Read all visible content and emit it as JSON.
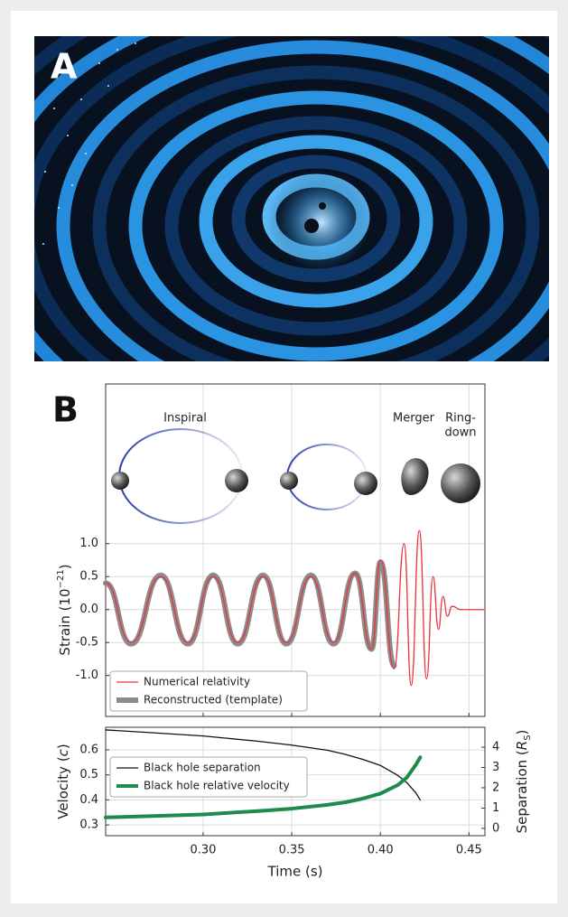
{
  "panels": {
    "a_label": "A",
    "b_label": "B"
  },
  "illustration": {
    "inspiral": "Inspiral",
    "merger": "Merger",
    "ringdown": [
      "Ring-",
      "down"
    ]
  },
  "chart_data": [
    {
      "type": "line",
      "smooth": true,
      "grid": true,
      "xtick_labels": false,
      "ylabel": [
        "Strain (10",
        "−21",
        ")"
      ],
      "xlim": [
        0.245,
        0.459
      ],
      "xticks": [
        0.3,
        0.35,
        0.4,
        0.45
      ],
      "ylim": [
        -1.62,
        3.42
      ],
      "yticks": [
        {
          "value": 1,
          "label": "1.0"
        },
        {
          "value": 0.5,
          "label": "0.5"
        },
        {
          "value": 0,
          "label": "0.0"
        },
        {
          "value": -0.5,
          "label": "-0.5"
        },
        {
          "value": -1,
          "label": "-1.0"
        }
      ],
      "legend": "lower left",
      "series": [
        {
          "name": "Reconstructed (template)",
          "color": "#8c8c8c",
          "width": 6,
          "x": [
            0.245,
            0.2593,
            0.2761,
            0.2914,
            0.3057,
            0.3195,
            0.3338,
            0.347,
            0.3608,
            0.3736,
            0.3858,
            0.395,
            0.4001,
            0.4078
          ],
          "values": [
            0.4,
            -0.52,
            0.52,
            -0.52,
            0.52,
            -0.52,
            0.52,
            -0.52,
            0.52,
            -0.52,
            0.55,
            -0.6,
            0.72,
            -0.85
          ]
        },
        {
          "name": "Numerical relativity",
          "color": "#e8353f",
          "width": 1.3,
          "x": [
            0.245,
            0.2593,
            0.2761,
            0.2914,
            0.3057,
            0.3195,
            0.3338,
            0.347,
            0.3608,
            0.3736,
            0.3858,
            0.395,
            0.4001,
            0.4078,
            0.4134,
            0.4174,
            0.422,
            0.4261,
            0.4297,
            0.4328,
            0.4353,
            0.4379,
            0.4404,
            0.4455,
            0.459
          ],
          "values": [
            0.4,
            -0.5,
            0.5,
            -0.5,
            0.5,
            -0.5,
            0.5,
            -0.5,
            0.5,
            -0.5,
            0.55,
            -0.6,
            0.75,
            -0.9,
            1.0,
            -1.15,
            1.2,
            -1.05,
            0.5,
            -0.3,
            0.2,
            -0.1,
            0.05,
            0,
            0
          ]
        }
      ]
    },
    {
      "type": "line",
      "smooth": false,
      "grid": true,
      "xtick_labels": true,
      "ylabel": [
        "Velocity (",
        "c",
        ")"
      ],
      "y2label": [
        "Separation (",
        "R",
        "S",
        ")"
      ],
      "xlabel": "Time (s)",
      "xlim": [
        0.245,
        0.459
      ],
      "xticks": [
        {
          "value": 0.3,
          "label": "0.30"
        },
        0.35,
        {
          "value": 0.4,
          "label": "0.40"
        },
        0.45
      ],
      "ylim": [
        0.257,
        0.69
      ],
      "yticks": [
        0.6,
        0.5,
        0.4,
        0.3
      ],
      "y2lim": [
        -0.36,
        4.98
      ],
      "y2ticks": [
        4,
        3,
        2,
        1,
        0
      ],
      "legend": "upper left",
      "series": [
        {
          "name": "Black hole separation",
          "color": "#111111",
          "width": 1.3,
          "axis": "y2",
          "x": [
            0.245,
            0.27,
            0.3,
            0.33,
            0.35,
            0.37,
            0.38,
            0.39,
            0.4,
            0.41,
            0.415,
            0.42,
            0.4225
          ],
          "values": [
            4.85,
            4.72,
            4.55,
            4.3,
            4.1,
            3.85,
            3.65,
            3.4,
            3.1,
            2.6,
            2.25,
            1.75,
            1.4
          ]
        },
        {
          "name": "Black hole relative velocity",
          "color": "#1e8a4c",
          "width": 4,
          "x": [
            0.245,
            0.27,
            0.3,
            0.33,
            0.35,
            0.37,
            0.38,
            0.39,
            0.4,
            0.41,
            0.415,
            0.42,
            0.4225
          ],
          "values": [
            0.33,
            0.335,
            0.342,
            0.355,
            0.365,
            0.38,
            0.39,
            0.405,
            0.425,
            0.46,
            0.49,
            0.54,
            0.57
          ]
        }
      ]
    }
  ]
}
